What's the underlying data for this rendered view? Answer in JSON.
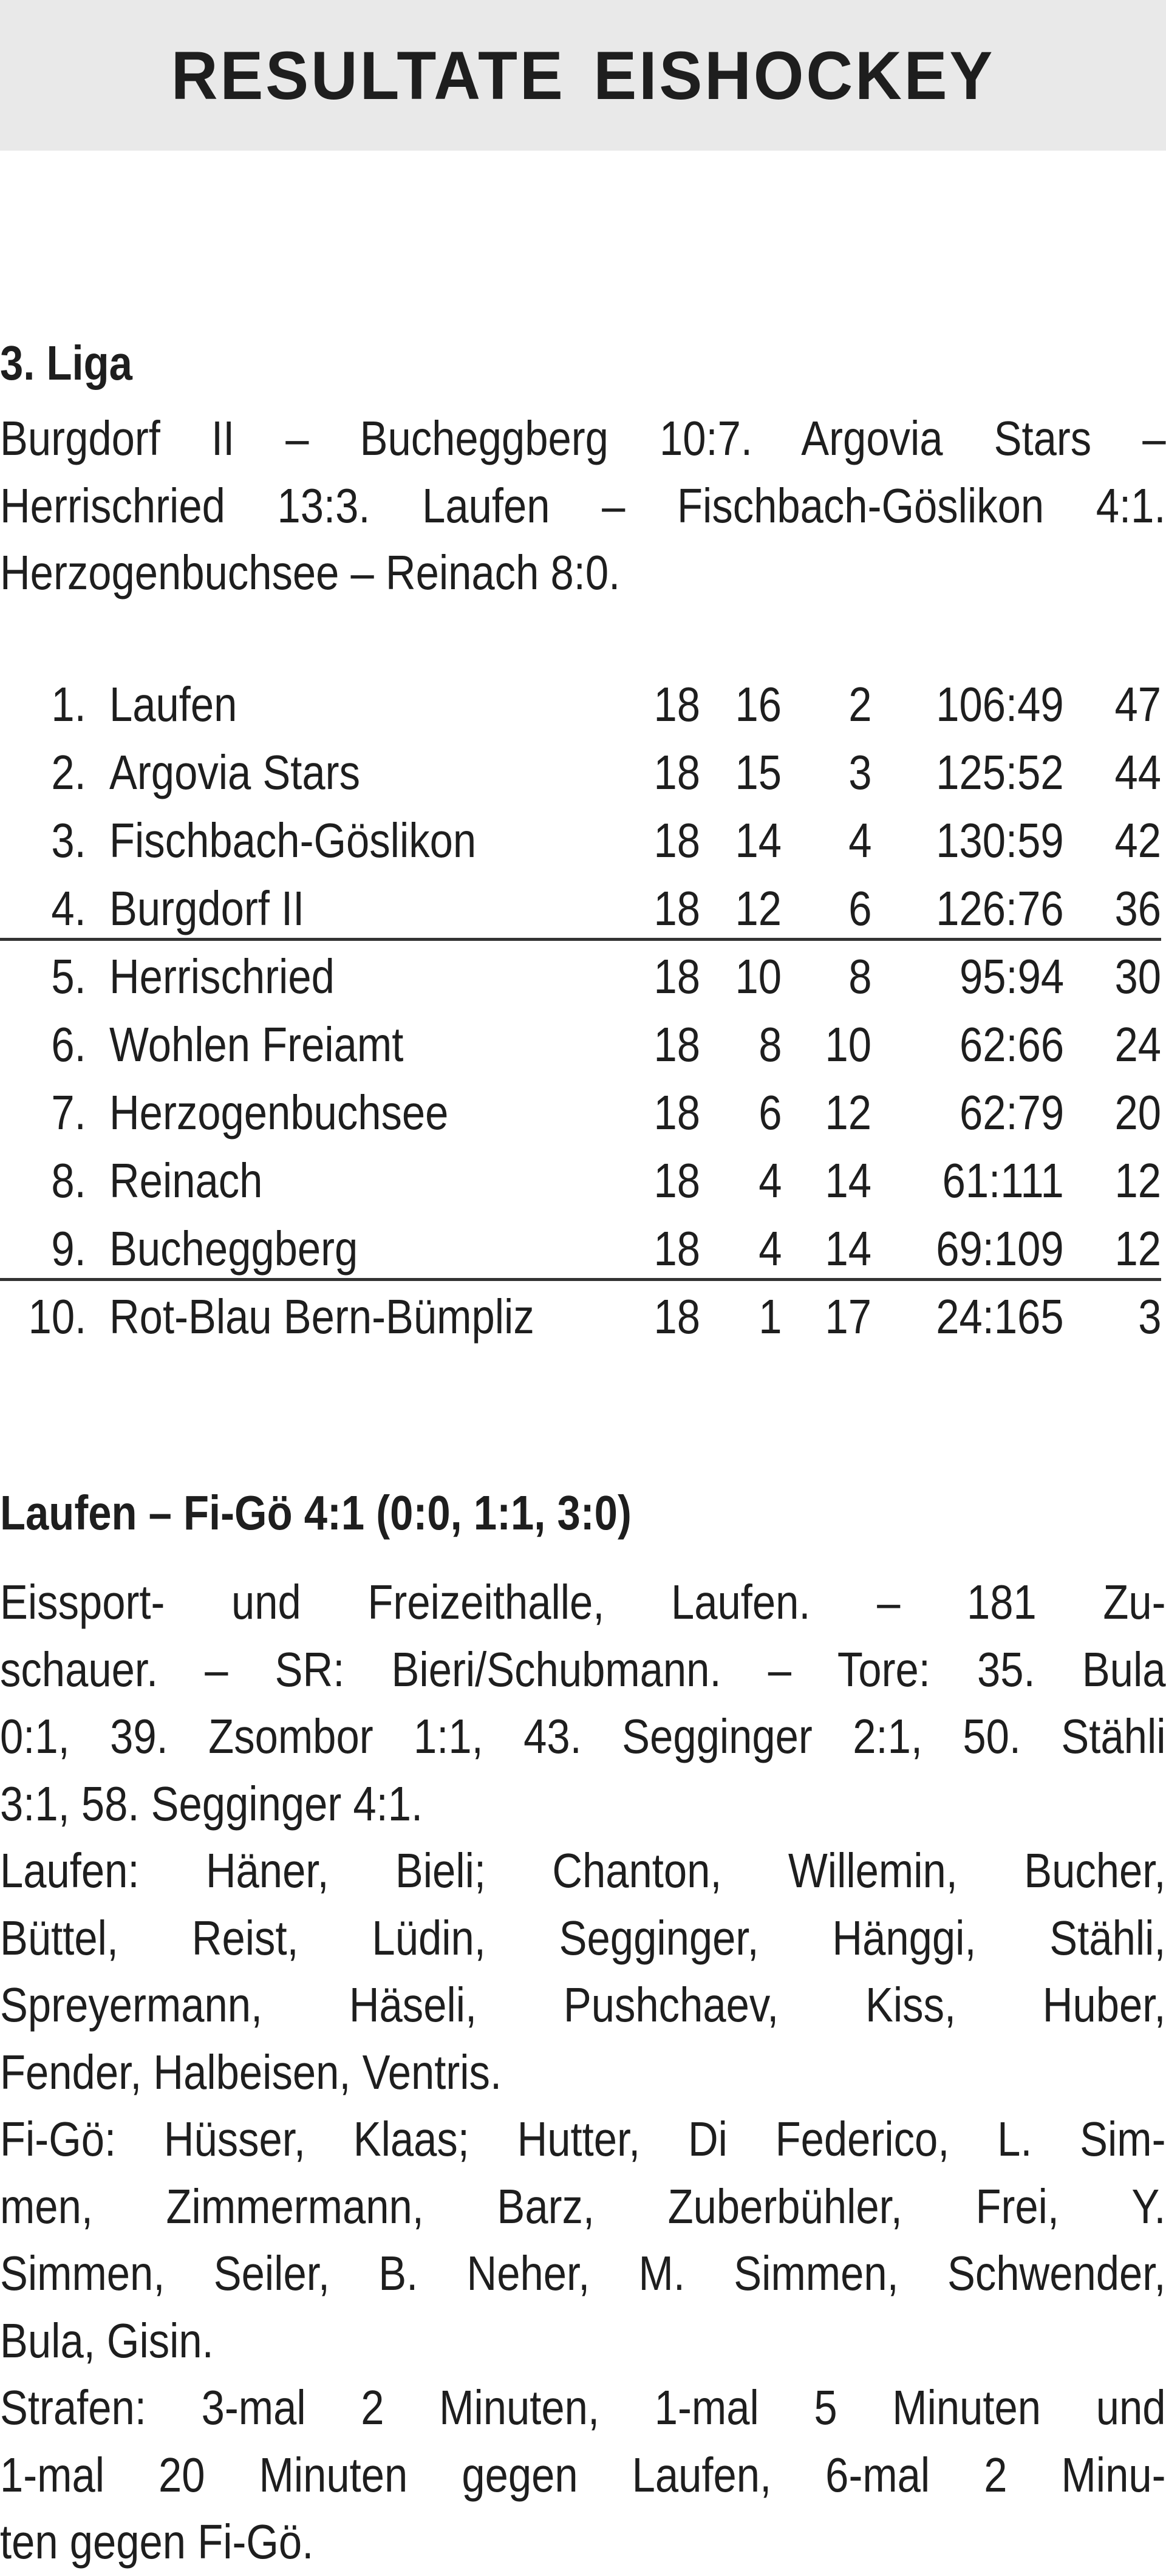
{
  "header": {
    "title": "RESULTATE EISHOCKEY"
  },
  "league": {
    "heading": "3. Liga",
    "results_lines": [
      "Burgdorf II – Bucheggberg 10:7. Argovia Stars –",
      "Herrischried 13:3. Laufen – Fischbach-Göslikon 4:1.",
      "Herzogenbuchsee – Reinach 8:0."
    ],
    "standings": [
      {
        "rank": "1.",
        "team": "Laufen",
        "gp": "18",
        "w": "16",
        "l": "2",
        "goals": "106:49",
        "pts": "47"
      },
      {
        "rank": "2.",
        "team": "Argovia Stars",
        "gp": "18",
        "w": "15",
        "l": "3",
        "goals": "125:52",
        "pts": "44"
      },
      {
        "rank": "3.",
        "team": "Fischbach-Göslikon",
        "gp": "18",
        "w": "14",
        "l": "4",
        "goals": "130:59",
        "pts": "42"
      },
      {
        "rank": "4.",
        "team": "Burgdorf II",
        "gp": "18",
        "w": "12",
        "l": "6",
        "goals": "126:76",
        "pts": "36"
      },
      {
        "rank": "5.",
        "team": "Herrischried",
        "gp": "18",
        "w": "10",
        "l": "8",
        "goals": "95:94",
        "pts": "30"
      },
      {
        "rank": "6.",
        "team": "Wohlen Freiamt",
        "gp": "18",
        "w": "8",
        "l": "10",
        "goals": "62:66",
        "pts": "24"
      },
      {
        "rank": "7.",
        "team": "Herzogenbuchsee",
        "gp": "18",
        "w": "6",
        "l": "12",
        "goals": "62:79",
        "pts": "20"
      },
      {
        "rank": "8.",
        "team": "Reinach",
        "gp": "18",
        "w": "4",
        "l": "14",
        "goals": "61:111",
        "pts": "12"
      },
      {
        "rank": "9.",
        "team": "Bucheggberg",
        "gp": "18",
        "w": "4",
        "l": "14",
        "goals": "69:109",
        "pts": "12"
      },
      {
        "rank": "10.",
        "team": "Rot-Blau Bern-Bümpliz",
        "gp": "18",
        "w": "1",
        "l": "17",
        "goals": "24:165",
        "pts": "3"
      }
    ]
  },
  "game": {
    "heading": "Laufen – Fi-Gö 4:1 (0:0, 1:1, 3:0)",
    "lines": [
      "Eissport- und Freizeithalle, Laufen. – 181 Zu-",
      "schauer. – SR: Bieri/Schubmann. – Tore: 35. Bula",
      "0:1, 39. Zsombor 1:1, 43. Segginger 2:1, 50. Stähli",
      "3:1, 58. Segginger 4:1.",
      "Laufen: Häner, Bieli; Chanton, Willemin, Bucher,",
      "Büttel, Reist, Lüdin, Segginger, Hänggi, Stähli,",
      "Spreyermann, Häseli, Pushchaev, Kiss, Huber,",
      "Fender, Halbeisen, Ventris.",
      "Fi-Gö: Hüsser, Klaas; Hutter, Di Federico, L. Sim-",
      "men, Zimmermann, Barz, Zuberbühler, Frei, Y.",
      "Simmen, Seiler, B. Neher, M. Simmen, Schwender,",
      "Bula, Gisin.",
      "Strafen: 3-mal 2 Minuten, 1-mal 5 Minuten und",
      "1-mal 20 Minuten gegen Laufen, 6-mal 2 Minu-",
      "ten gegen Fi-Gö."
    ],
    "last_lines": [
      3,
      7,
      11,
      14
    ]
  }
}
